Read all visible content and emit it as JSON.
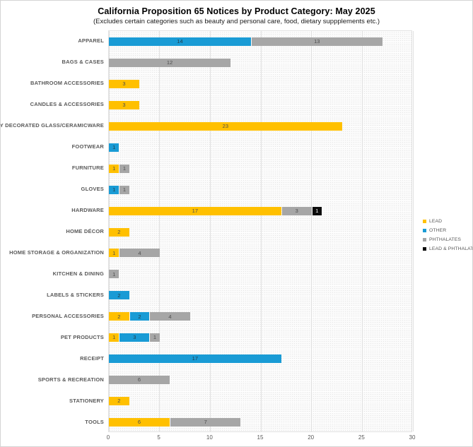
{
  "chart": {
    "title": "California Proposition 65 Notices by Product Category: May 2025",
    "subtitle": "(Excludes certain categories such as beauty and personal care, food, dietary suppplements etc.)"
  },
  "chart_data": {
    "type": "bar",
    "orientation": "horizontal",
    "stacked": true,
    "title": "California Proposition 65 Notices by Product Category: May 2025",
    "subtitle": "(Excludes certain categories such as beauty and personal care, food, dietary suppplements etc.)",
    "xlabel": "",
    "ylabel": "",
    "xlim": [
      0,
      30
    ],
    "x_ticks": [
      0,
      5,
      10,
      15,
      20,
      25,
      30
    ],
    "grid": true,
    "legend_position": "right",
    "categories": [
      "APPAREL",
      "BAGS & CASES",
      "BATHROOM ACCESSORIES",
      "CANDLES & ACCESSORIES",
      "EXTERNALLY DECORATED GLASS/CERAMICWARE",
      "FOOTWEAR",
      "FURNITURE",
      "GLOVES",
      "HARDWARE",
      "HOME DÉCOR",
      "HOME STORAGE & ORGANIZATION",
      "KITCHEN & DINING",
      "LABELS & STICKERS",
      "PERSONAL ACCESSORIES",
      "PET PRODUCTS",
      "RECEIPT",
      "SPORTS & RECREATION",
      "STATIONERY",
      "TOOLS"
    ],
    "series": [
      {
        "name": "LEAD",
        "color": "#FFC000",
        "label_color": "#4d4d4d",
        "values": [
          0,
          0,
          3,
          3,
          23,
          0,
          1,
          0,
          17,
          2,
          1,
          0,
          0,
          2,
          1,
          0,
          0,
          2,
          6
        ]
      },
      {
        "name": "OTHER",
        "color": "#199BD5",
        "label_color": "#1f3a47",
        "values": [
          14,
          0,
          0,
          0,
          0,
          1,
          0,
          1,
          0,
          0,
          0,
          0,
          2,
          2,
          3,
          17,
          0,
          0,
          0
        ]
      },
      {
        "name": "PHTHALATES",
        "color": "#A6A6A6",
        "label_color": "#4d4d4d",
        "values": [
          13,
          12,
          0,
          0,
          0,
          0,
          1,
          1,
          3,
          0,
          4,
          1,
          0,
          4,
          1,
          0,
          6,
          0,
          7
        ]
      },
      {
        "name": "LEAD & PHTHALATES",
        "color": "#0D0D0D",
        "label_color": "#ffffff",
        "values": [
          0,
          0,
          0,
          0,
          0,
          0,
          0,
          0,
          1,
          0,
          0,
          0,
          0,
          0,
          0,
          0,
          0,
          0,
          0
        ]
      }
    ]
  }
}
